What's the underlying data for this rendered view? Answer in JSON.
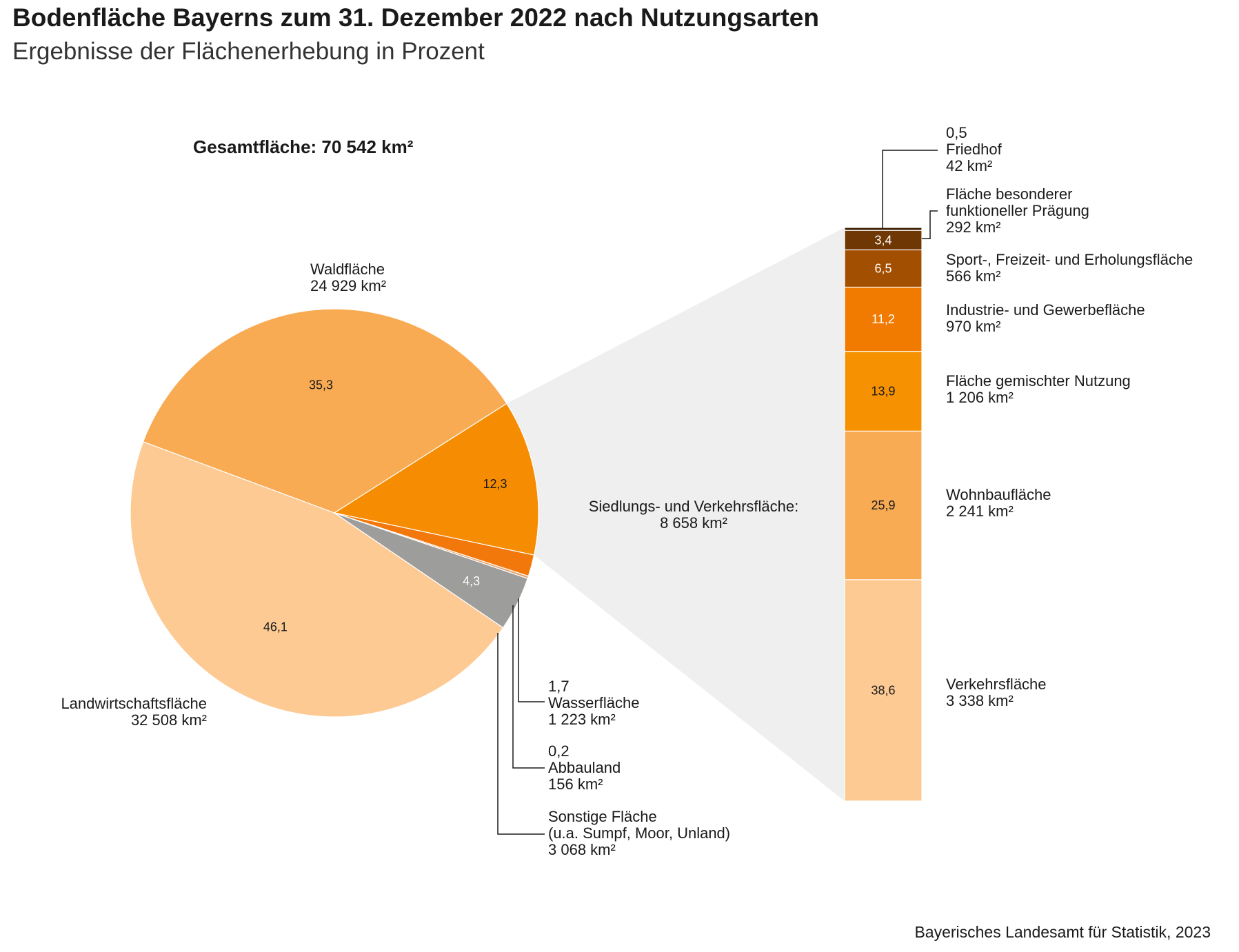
{
  "header": {
    "title": "Bodenfläche Bayerns zum 31. Dezember 2022 nach Nutzungsarten",
    "subtitle": "Ergebnisse der Flächenerhebung in Prozent",
    "total": "Gesamtfläche: 70 542 km²"
  },
  "source": "Bayerisches Landesamt für Statistik, 2023",
  "chart_data": [
    {
      "type": "pie",
      "unit": "Prozent",
      "slices": [
        {
          "label": "Waldfläche",
          "area": "24 929 km²",
          "value": 35.3,
          "value_text": "35,3",
          "color": "#f9ab53"
        },
        {
          "label": "Siedlungs- und Verkehrsfläche:",
          "area": "8 658 km²",
          "value": 12.3,
          "value_text": "12,3",
          "color": "#f58c02"
        },
        {
          "label": "Wasserfläche",
          "area": "1 223 km²",
          "value": 1.7,
          "value_text": "1,7",
          "color": "#f2780b"
        },
        {
          "label": "Abbauland",
          "area": "156 km²",
          "value": 0.2,
          "value_text": "0,2",
          "color": "#e3a574"
        },
        {
          "label": "Sonstige Fläche",
          "label2": "(u.a. Sumpf, Moor, Unland)",
          "area": "3 068 km²",
          "value": 4.3,
          "value_text": "4,3",
          "color": "#9d9d9c"
        },
        {
          "label": "Landwirtschaftsfläche",
          "area": "32 508 km²",
          "value": 46.1,
          "value_text": "46,1",
          "color": "#fdca94"
        }
      ]
    },
    {
      "type": "bar",
      "stacked": true,
      "unit": "Prozent",
      "segments": [
        {
          "label": "Verkehrsfläche",
          "area": "3 338 km²",
          "value": 38.6,
          "value_text": "38,6",
          "color": "#fdca94"
        },
        {
          "label": "Wohnbaufläche",
          "area": "2 241 km²",
          "value": 25.9,
          "value_text": "25,9",
          "color": "#f9ab53"
        },
        {
          "label": "Fläche gemischter Nutzung",
          "area": "1 206 km²",
          "value": 13.9,
          "value_text": "13,9",
          "color": "#f69102"
        },
        {
          "label": "Industrie- und Gewerbefläche",
          "area": "970 km²",
          "value": 11.2,
          "value_text": "11,2",
          "color": "#f17a00"
        },
        {
          "label": "Sport-, Freizeit- und Erholungsfläche",
          "area": "566 km²",
          "value": 6.5,
          "value_text": "6,5",
          "color": "#a34f02"
        },
        {
          "label": "Fläche besonderer",
          "label2": "funktioneller Prägung",
          "area": "292 km²",
          "value": 3.4,
          "value_text": "3,4",
          "color": "#6e3703"
        },
        {
          "label": "Friedhof",
          "area": "42 km²",
          "value": 0.5,
          "value_text": "0,5",
          "color": "#3d2005"
        }
      ]
    }
  ]
}
